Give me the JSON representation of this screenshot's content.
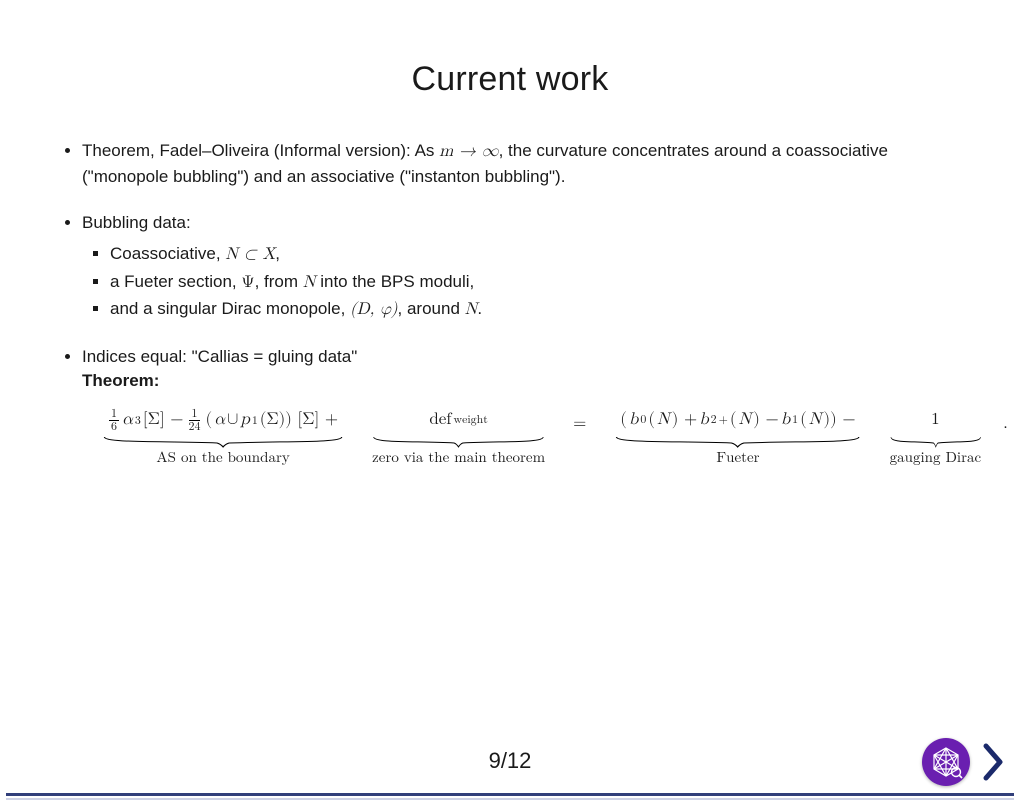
{
  "title": "Current work",
  "bullets": {
    "b1_pre": "Theorem, Fadel–Oliveira (Informal version): As ",
    "b1_math": "m → ∞",
    "b1_post": ", the curvature concentrates around a coassociative (\"monopole bubbling\") and an associative (\"instanton bubbling\").",
    "b2": "Bubbling data:",
    "b2a_pre": "Coassociative, ",
    "b2a_math": "N ⊂ X",
    "b2a_post": ",",
    "b2b_pre": "a Fueter section, ",
    "b2b_math1": "Ψ",
    "b2b_mid": ", from ",
    "b2b_math2": "N",
    "b2b_post": " into the BPS moduli,",
    "b2c_pre": "and a singular Dirac monopole, ",
    "b2c_math1": "(D, φ)",
    "b2c_mid": ", around ",
    "b2c_math2": "N",
    "b2c_post": ".",
    "b3": "Indices equal: \"Callias = gluing data\"",
    "b3_sub": "Theorem:"
  },
  "equation": {
    "terms": [
      {
        "expr_html": "<span class='frac'><span class='num'>1</span><span class='den'>6</span></span><span class='ital'>α</span><sup>3</sup> [Σ] − <span class='frac'><span class='num'>1</span><span class='den'>24</span></span>(<span class='ital'>α</span> ∪ <span class='ital'>p</span><sub>1</sub> (Σ)) [Σ] +",
        "label": "AS on the boundary"
      },
      {
        "expr_html": "def<sub>weight</sub>",
        "label": "zero via the main theorem"
      },
      {
        "expr_html": "(<span class='ital'>b</span><sub>0</sub> (<span class='ital'>N</span>) + <span class='ital'>b</span><sub>2</sub><sup>+</sup> (<span class='ital'>N</span>) − <span class='ital'>b</span><sub>1</sub> (<span class='ital'>N</span>)) −",
        "label": "Fueter"
      },
      {
        "expr_html": "1",
        "label": "gauging Dirac"
      }
    ],
    "eq_sign": "=",
    "period": "."
  },
  "page": {
    "current": 9,
    "total": 12,
    "display": "9/12"
  },
  "colors": {
    "accent_purple": "#6a1fb0",
    "nav_blue": "#1b2a6b",
    "text": "#1a1a1a",
    "background": "#ffffff"
  }
}
